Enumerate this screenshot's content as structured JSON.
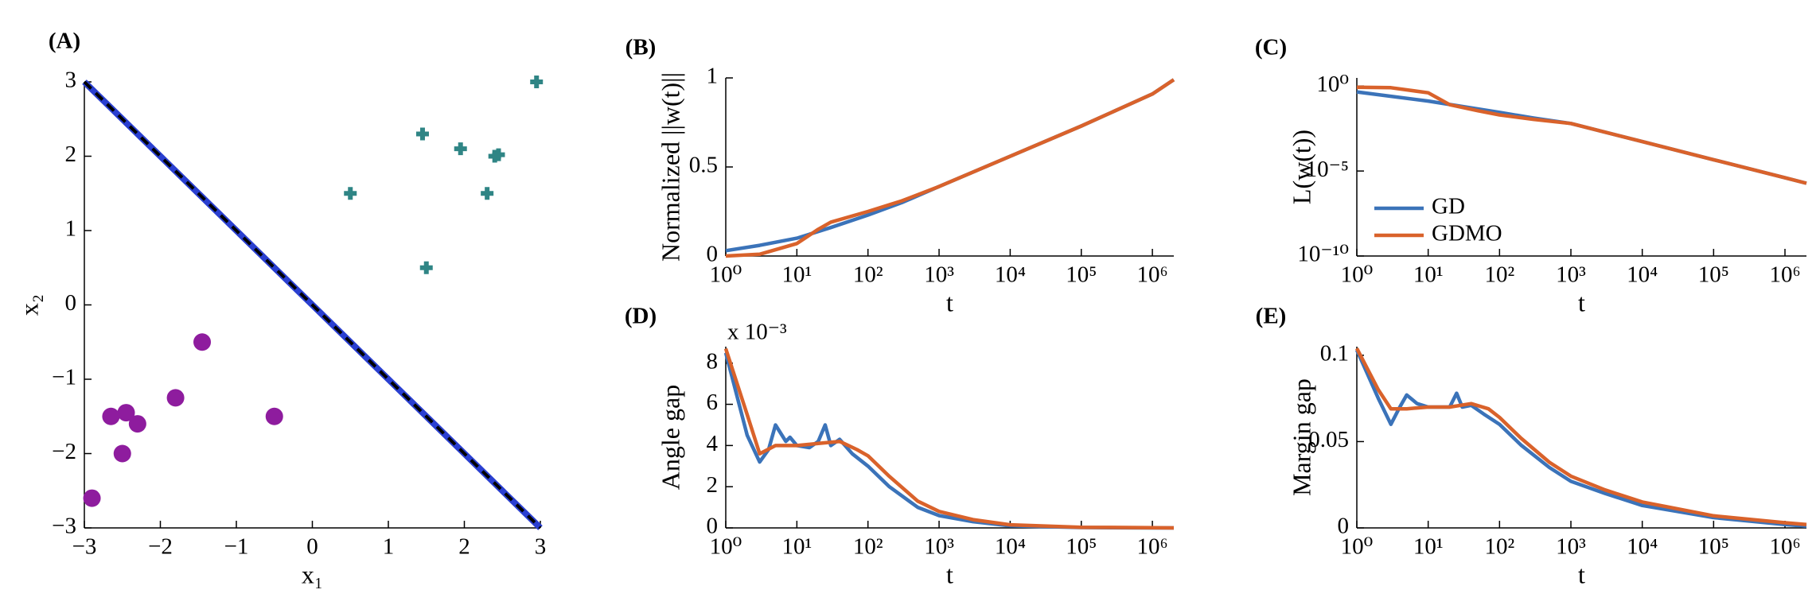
{
  "chart_data": [
    {
      "type": "scatter",
      "label": "(A)",
      "xlabel": "x₁",
      "ylabel": "x₂",
      "xlim": [
        -3,
        3
      ],
      "ylim": [
        -3,
        3
      ],
      "xticks": [
        {
          "value": -3,
          "label": "−3"
        },
        {
          "value": -2,
          "label": "−2"
        },
        {
          "value": -1,
          "label": "−1"
        },
        0,
        1,
        2,
        3
      ],
      "yticks": [
        {
          "value": -3,
          "label": "−3"
        },
        {
          "value": -2,
          "label": "−2"
        },
        {
          "value": -1,
          "label": "−1"
        },
        0,
        1,
        2,
        3
      ],
      "series": [
        {
          "marker": "circle",
          "color": "#8e1c9e",
          "x": [
            -2.9,
            -2.65,
            -2.45,
            -2.5,
            -2.3,
            -1.8,
            -1.45,
            -0.5
          ],
          "values": [
            -2.6,
            -1.5,
            -1.45,
            -2.0,
            -1.6,
            -1.25,
            -0.5,
            -1.5
          ]
        },
        {
          "marker": "plus",
          "color": "#2f8585",
          "x": [
            0.5,
            1.45,
            1.5,
            1.95,
            2.3,
            2.4,
            2.45,
            2.95
          ],
          "values": [
            1.5,
            2.3,
            0.5,
            2.1,
            1.5,
            2.0,
            2.02,
            3.0
          ]
        },
        {
          "marker": "line",
          "color": "#2a3fd0",
          "x": [
            -3,
            3
          ],
          "values": [
            3,
            -3
          ]
        },
        {
          "marker": "dashed",
          "color": "#000000",
          "x": [
            -3,
            3
          ],
          "values": [
            3,
            -3
          ]
        }
      ]
    },
    {
      "type": "line",
      "label": "(B)",
      "xlabel": "t",
      "ylabel": "Normalized ||w(t)||",
      "xscale": "log",
      "xlim": [
        1,
        2000000
      ],
      "ylim": [
        0,
        1
      ],
      "xticks": [
        {
          "value": 1,
          "label": "10⁰"
        },
        {
          "value": 10,
          "label": "10¹"
        },
        {
          "value": 100,
          "label": "10²"
        },
        {
          "value": 1000,
          "label": "10³"
        },
        {
          "value": 10000,
          "label": "10⁴"
        },
        {
          "value": 100000,
          "label": "10⁵"
        },
        {
          "value": 1000000,
          "label": "10⁶"
        }
      ],
      "yticks": [
        0,
        0.5,
        1
      ],
      "series": [
        {
          "color": "#3b73b9",
          "x": [
            1,
            3,
            10,
            30,
            100,
            300,
            1000,
            10000,
            100000,
            1000000,
            2000000
          ],
          "values": [
            0.03,
            0.06,
            0.1,
            0.16,
            0.23,
            0.3,
            0.39,
            0.56,
            0.73,
            0.91,
            0.99
          ]
        },
        {
          "color": "#d9622b",
          "x": [
            1,
            3,
            10,
            20,
            30,
            100,
            300,
            1000,
            10000,
            100000,
            1000000,
            2000000
          ],
          "values": [
            0.0,
            0.01,
            0.07,
            0.15,
            0.19,
            0.25,
            0.31,
            0.39,
            0.56,
            0.73,
            0.91,
            0.99
          ]
        }
      ]
    },
    {
      "type": "line",
      "label": "(C)",
      "xlabel": "t",
      "ylabel": "L(w(t))",
      "xscale": "log",
      "yscale": "log",
      "legend": "lower left",
      "xlim": [
        1,
        2000000
      ],
      "ylim": [
        1e-10,
        3
      ],
      "xticks": [
        {
          "value": 1,
          "label": "10⁰"
        },
        {
          "value": 10,
          "label": "10¹"
        },
        {
          "value": 100,
          "label": "10²"
        },
        {
          "value": 1000,
          "label": "10³"
        },
        {
          "value": 10000,
          "label": "10⁴"
        },
        {
          "value": 100000,
          "label": "10⁵"
        },
        {
          "value": 1000000,
          "label": "10⁶"
        }
      ],
      "yticks": [
        {
          "value": 1e-10,
          "label": "10⁻¹⁰"
        },
        {
          "value": 1e-05,
          "label": "10⁻⁵"
        },
        {
          "value": 1,
          "label": "10⁰"
        }
      ],
      "series": [
        {
          "name": "GD",
          "color": "#3b73b9",
          "x": [
            1,
            10,
            100,
            300,
            1000,
            10000,
            100000,
            1000000,
            2000000
          ],
          "values": [
            0.45,
            0.13,
            0.028,
            0.013,
            0.0063,
            0.00054,
            4.6e-05,
            4e-06,
            1.9e-06
          ]
        },
        {
          "name": "GDMO",
          "color": "#d9622b",
          "x": [
            1,
            3,
            10,
            20,
            50,
            100,
            300,
            1000,
            10000,
            100000,
            1000000,
            2000000
          ],
          "values": [
            0.85,
            0.8,
            0.4,
            0.08,
            0.035,
            0.02,
            0.011,
            0.0063,
            0.00054,
            4.6e-05,
            4e-06,
            1.9e-06
          ]
        }
      ]
    },
    {
      "type": "line",
      "label": "(D)",
      "xlabel": "t",
      "ylabel": "Angle gap",
      "multiplier": "x 10⁻³",
      "xscale": "log",
      "xlim": [
        1,
        2000000
      ],
      "ylim": [
        0,
        8.8
      ],
      "xticks": [
        {
          "value": 1,
          "label": "10⁰"
        },
        {
          "value": 10,
          "label": "10¹"
        },
        {
          "value": 100,
          "label": "10²"
        },
        {
          "value": 1000,
          "label": "10³"
        },
        {
          "value": 10000,
          "label": "10⁴"
        },
        {
          "value": 100000,
          "label": "10⁵"
        },
        {
          "value": 1000000,
          "label": "10⁶"
        }
      ],
      "yticks": [
        0,
        2,
        4,
        6,
        8
      ],
      "series": [
        {
          "color": "#3b73b9",
          "x": [
            1,
            2,
            3,
            4,
            5,
            7,
            8,
            10,
            15,
            20,
            25,
            30,
            40,
            60,
            100,
            200,
            500,
            1000,
            3000,
            10000,
            100000,
            1000000,
            2000000
          ],
          "values": [
            8.5,
            4.5,
            3.2,
            3.8,
            5.0,
            4.2,
            4.4,
            4.0,
            3.9,
            4.2,
            5.0,
            4.0,
            4.3,
            3.6,
            3.0,
            2.0,
            1.0,
            0.6,
            0.3,
            0.1,
            0.02,
            0,
            0
          ]
        },
        {
          "color": "#d9622b",
          "x": [
            1,
            2,
            3,
            5,
            10,
            20,
            40,
            70,
            100,
            200,
            500,
            1000,
            3000,
            10000,
            100000,
            1000000,
            2000000
          ],
          "values": [
            8.7,
            5.5,
            3.6,
            4.0,
            4.0,
            4.1,
            4.2,
            3.8,
            3.5,
            2.5,
            1.3,
            0.8,
            0.4,
            0.15,
            0.03,
            0.01,
            0
          ]
        }
      ]
    },
    {
      "type": "line",
      "label": "(E)",
      "xlabel": "t",
      "ylabel": "Margin gap",
      "xscale": "log",
      "xlim": [
        1,
        2000000
      ],
      "ylim": [
        0,
        0.105
      ],
      "xticks": [
        {
          "value": 1,
          "label": "10⁰"
        },
        {
          "value": 10,
          "label": "10¹"
        },
        {
          "value": 100,
          "label": "10²"
        },
        {
          "value": 1000,
          "label": "10³"
        },
        {
          "value": 10000,
          "label": "10⁴"
        },
        {
          "value": 100000,
          "label": "10⁵"
        },
        {
          "value": 1000000,
          "label": "10⁶"
        }
      ],
      "yticks": [
        0,
        0.05,
        0.1
      ],
      "series": [
        {
          "color": "#3b73b9",
          "x": [
            1,
            2,
            3,
            4,
            5,
            7,
            10,
            20,
            25,
            30,
            40,
            60,
            100,
            200,
            500,
            1000,
            3000,
            10000,
            100000,
            1000000,
            2000000
          ],
          "values": [
            0.103,
            0.075,
            0.06,
            0.07,
            0.077,
            0.072,
            0.07,
            0.07,
            0.078,
            0.07,
            0.071,
            0.066,
            0.06,
            0.048,
            0.035,
            0.027,
            0.02,
            0.013,
            0.006,
            0.002,
            0.001
          ]
        },
        {
          "color": "#d9622b",
          "x": [
            1,
            2,
            3,
            5,
            10,
            20,
            40,
            70,
            100,
            200,
            500,
            1000,
            3000,
            10000,
            100000,
            1000000,
            2000000
          ],
          "values": [
            0.104,
            0.08,
            0.069,
            0.069,
            0.07,
            0.07,
            0.072,
            0.069,
            0.064,
            0.052,
            0.038,
            0.03,
            0.022,
            0.015,
            0.007,
            0.003,
            0.002
          ]
        }
      ]
    }
  ]
}
